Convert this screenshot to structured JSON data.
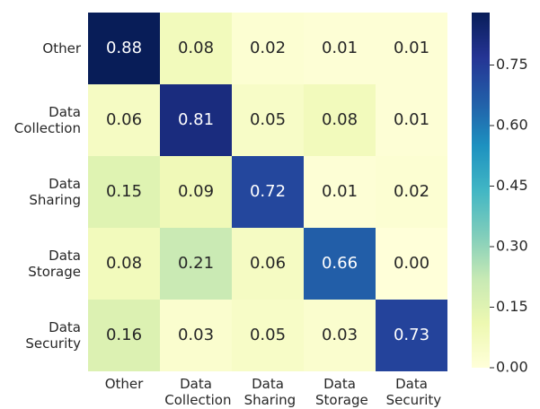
{
  "chart_data": {
    "type": "heatmap",
    "x_categories": [
      "Other",
      "Data Collection",
      "Data Sharing",
      "Data Storage",
      "Data Security"
    ],
    "y_categories": [
      "Other",
      "Data Collection",
      "Data Sharing",
      "Data Storage",
      "Data Security"
    ],
    "values": [
      [
        0.88,
        0.08,
        0.02,
        0.01,
        0.01
      ],
      [
        0.06,
        0.81,
        0.05,
        0.08,
        0.01
      ],
      [
        0.15,
        0.09,
        0.72,
        0.01,
        0.02
      ],
      [
        0.08,
        0.21,
        0.06,
        0.66,
        0
      ],
      [
        0.16,
        0.03,
        0.05,
        0.03,
        0.73
      ]
    ],
    "value_labels": [
      [
        "0.88",
        "0.08",
        "0.02",
        "0.01",
        "0.01"
      ],
      [
        "0.06",
        "0.81",
        "0.05",
        "0.08",
        "0.01"
      ],
      [
        "0.15",
        "0.09",
        "0.72",
        "0.01",
        "0.02"
      ],
      [
        "0.08",
        "0.21",
        "0.06",
        "0.66",
        "0.00"
      ],
      [
        "0.16",
        "0.03",
        "0.05",
        "0.03",
        "0.73"
      ]
    ],
    "colormap": [
      "#ffffd9",
      "#edf8b1",
      "#c7e9b4",
      "#7fcdbb",
      "#41b6c4",
      "#1d91c0",
      "#225ea8",
      "#253494",
      "#081d58"
    ],
    "zlim": [
      0,
      0.88
    ],
    "zticks": [
      {
        "value": 0,
        "label": "0.00"
      },
      {
        "value": 0.15,
        "label": "0.15"
      },
      {
        "value": 0.3,
        "label": "0.30"
      },
      {
        "value": 0.45,
        "label": "0.45"
      },
      {
        "value": 0.6,
        "label": "0.60"
      },
      {
        "value": 0.75,
        "label": "0.75"
      }
    ]
  }
}
